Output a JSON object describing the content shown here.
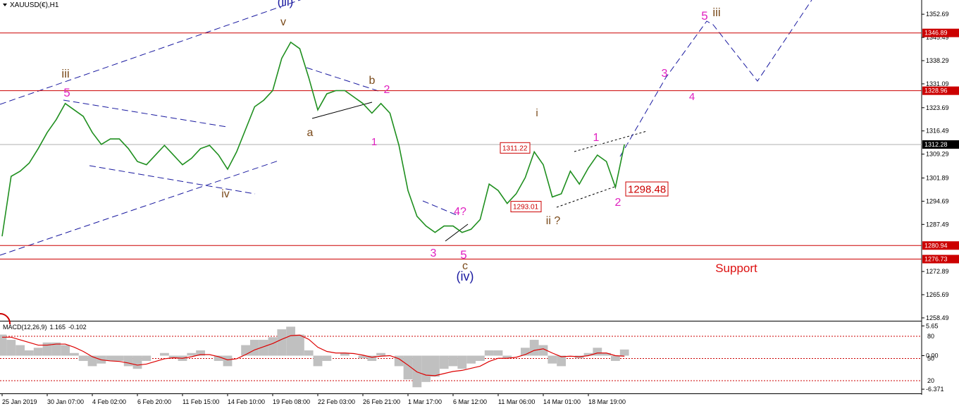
{
  "chart_data": {
    "type": "line",
    "title": "XAUUSD(€),H1",
    "categories": [
      "25 Jan 2019",
      null,
      null,
      null,
      null,
      "30 Jan 07:00",
      null,
      null,
      null,
      null,
      "4 Feb 02:00",
      null,
      null,
      null,
      null,
      "6 Feb 20:00",
      null,
      null,
      null,
      null,
      "11 Feb 15:00",
      null,
      null,
      null,
      null,
      "14 Feb 10:00",
      null,
      null,
      null,
      null,
      "19 Feb 08:00",
      null,
      null,
      null,
      null,
      "22 Feb 03:00",
      null,
      null,
      null,
      null,
      "26 Feb 21:00",
      null,
      null,
      null,
      null,
      "1 Mar 17:00",
      null,
      null,
      null,
      null,
      "6 Mar 12:00",
      null,
      null,
      null,
      null,
      "11 Mar 06:00",
      null,
      null,
      null,
      null,
      "14 Mar 01:00",
      null,
      null,
      null,
      null,
      "18 Mar 19:00",
      null,
      null,
      null,
      null
    ],
    "series": [
      {
        "name": "XAUUSD",
        "color": "#1f8f1f",
        "values": [
          1283.8,
          1302.4,
          1304,
          1306.5,
          1311,
          1316,
          1320,
          1325,
          1323,
          1321,
          1316,
          1312.3,
          1314,
          1314,
          1311,
          1307,
          1306,
          1309,
          1312,
          1309,
          1306,
          1308,
          1311,
          1312,
          1309,
          1304.6,
          1310,
          1317,
          1324,
          1326,
          1329,
          1339,
          1344,
          1342,
          1333,
          1323,
          1328,
          1329,
          1329,
          1327,
          1325,
          1322,
          1325,
          1322,
          1312,
          1298,
          1290,
          1287,
          1285,
          1287,
          1287,
          1285,
          1286,
          1289,
          1300,
          1298,
          1294,
          1297,
          1302,
          1310,
          1306,
          1296,
          1297,
          1304,
          1300,
          1305,
          1309,
          1307,
          1299,
          1312.28
        ]
      }
    ],
    "ylim": [
      1257.6,
      1357.1
    ],
    "yticks": [
      1352.69,
      1345.49,
      1338.29,
      1331.09,
      1323.69,
      1316.49,
      1309.29,
      1301.89,
      1294.69,
      1287.49,
      1272.89,
      1265.69,
      1258.49
    ],
    "levels": [
      1346.89,
      1328.96,
      1280.94,
      1276.73
    ],
    "level_color": "#cc0000",
    "current_price": 1312.28,
    "price_labels": [
      1311.22,
      1293.01,
      1298.48
    ],
    "annotations": [
      {
        "text": "(iii)",
        "color": "#1a1aa0"
      },
      {
        "text": "v",
        "color": "#7a4a1a"
      },
      {
        "text": "iii",
        "color": "#7a4a1a"
      },
      {
        "text": "5",
        "color": "#e020c0"
      },
      {
        "text": "iv",
        "color": "#7a4a1a"
      },
      {
        "text": "a",
        "color": "#7a4a1a"
      },
      {
        "text": "b",
        "color": "#7a4a1a"
      },
      {
        "text": "2",
        "color": "#e020c0"
      },
      {
        "text": "1",
        "color": "#e020c0"
      },
      {
        "text": "3",
        "color": "#e020c0"
      },
      {
        "text": "4?",
        "color": "#e020c0"
      },
      {
        "text": "5",
        "color": "#e020c0"
      },
      {
        "text": "c",
        "color": "#7a4a1a"
      },
      {
        "text": "(iv)",
        "color": "#1a1aa0"
      },
      {
        "text": "i",
        "color": "#7a4a1a"
      },
      {
        "text": "ii ?",
        "color": "#7a4a1a"
      },
      {
        "text": "1",
        "color": "#e020c0"
      },
      {
        "text": "2",
        "color": "#e020c0"
      },
      {
        "text": "3",
        "color": "#e020c0"
      },
      {
        "text": "4",
        "color": "#e020c0"
      },
      {
        "text": "5",
        "color": "#e020c0"
      },
      {
        "text": "iii",
        "color": "#7a4a1a"
      },
      {
        "text": "Support",
        "color": "#dd1111"
      }
    ],
    "macd": {
      "title": "MACD(12,26,9)",
      "ylim": [
        -7.03,
        6.49
      ],
      "yticks": [
        5.65,
        {
          "value": 0,
          "label": "0.00"
        },
        -6.371
      ],
      "y2lim": [
        0,
        100
      ],
      "y2ticks": [
        80,
        50,
        20
      ],
      "series": [
        {
          "name": "MACD",
          "color": "#c0c0c0",
          "values": [
            4,
            3,
            2,
            1,
            1.5,
            2.5,
            2.5,
            2,
            0.5,
            -1,
            -2,
            -1.5,
            -1,
            -1,
            -2,
            -2.5,
            -1,
            0,
            0.5,
            -0.5,
            -1,
            0.5,
            1,
            0,
            -1,
            -2,
            0,
            2,
            3,
            3,
            3.5,
            5,
            5.5,
            4,
            1,
            -2,
            -1,
            0,
            0.5,
            0,
            -0.5,
            -1,
            0.5,
            0,
            -2,
            -4.5,
            -6,
            -5,
            -4,
            -2.5,
            -2,
            -2.5,
            -1.5,
            -1,
            1,
            1,
            -0.5,
            0,
            1.5,
            3,
            2,
            -1.5,
            -2,
            0,
            -0.5,
            0.5,
            1.5,
            0.5,
            -1,
            1.165
          ]
        },
        {
          "name": "Signal",
          "color": "#dd0000",
          "values": [
            3.5,
            3.5,
            3,
            2.5,
            2,
            2,
            2.2,
            2.2,
            1.6,
            0.8,
            -0.2,
            -0.8,
            -1,
            -1.1,
            -1.4,
            -1.8,
            -1.6,
            -1.1,
            -0.6,
            -0.4,
            -0.5,
            -0.2,
            0.2,
            0.2,
            -0.2,
            -0.8,
            -0.6,
            0.2,
            1.1,
            1.7,
            2.3,
            3.1,
            3.8,
            3.9,
            3.1,
            1.6,
            0.8,
            0.5,
            0.5,
            0.4,
            0.1,
            -0.3,
            -0.1,
            0,
            -0.6,
            -1.8,
            -3.1,
            -3.7,
            -3.8,
            -3.4,
            -3,
            -2.8,
            -2.4,
            -2,
            -1.1,
            -0.5,
            -0.5,
            -0.3,
            0.2,
            1,
            1.3,
            0.5,
            -0.2,
            -0.1,
            -0.2,
            0,
            0.5,
            0.5,
            0,
            -0.102
          ]
        }
      ]
    }
  }
}
